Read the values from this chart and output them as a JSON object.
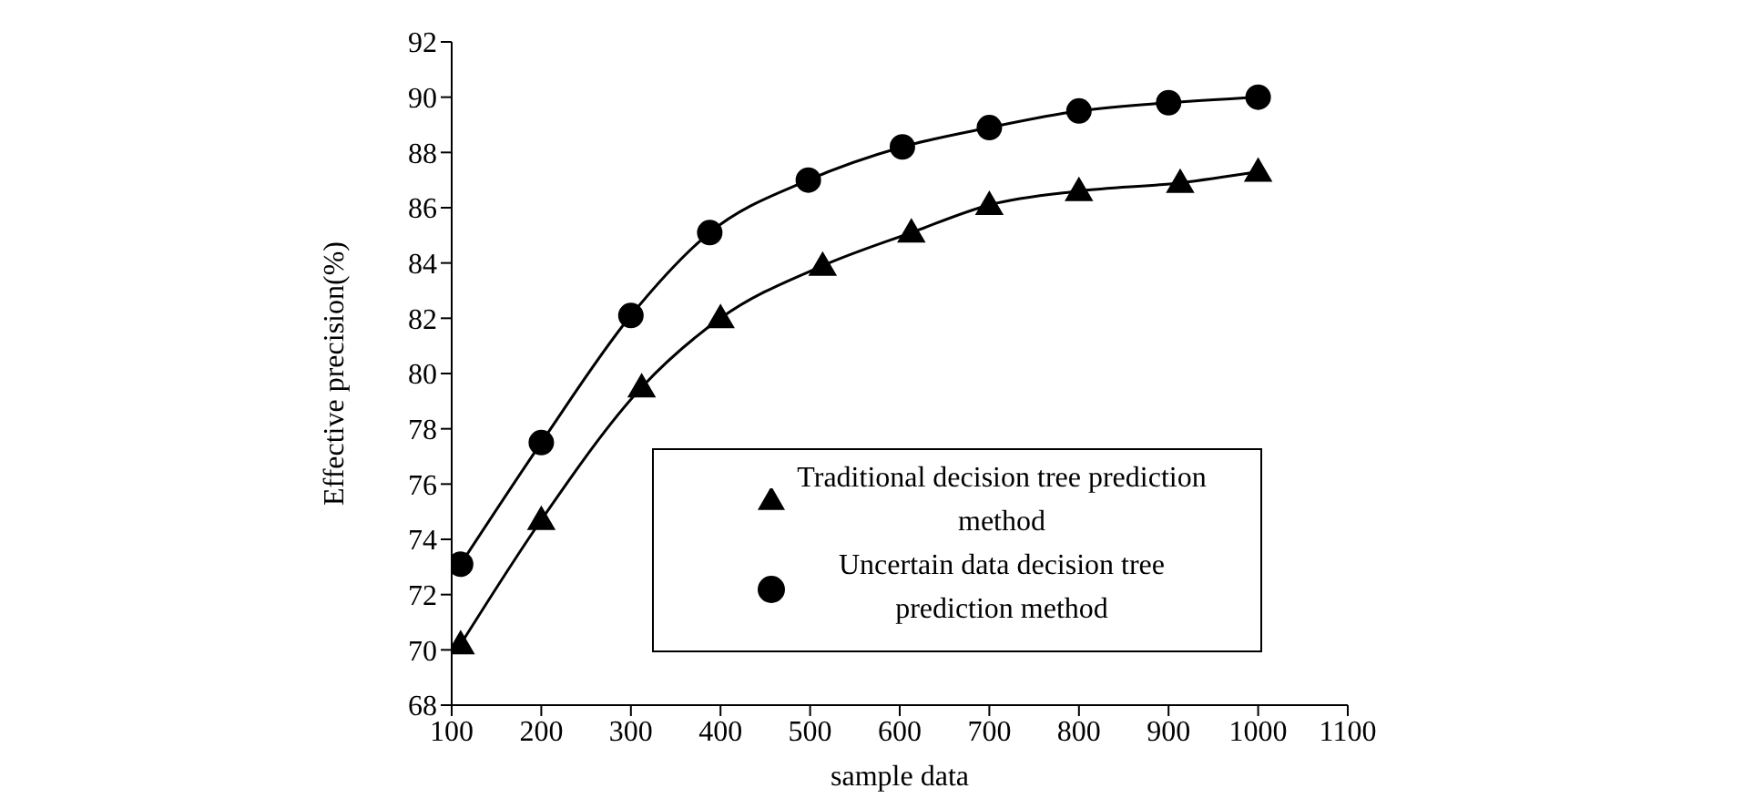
{
  "chart_data": {
    "type": "line",
    "xlabel": "sample data",
    "ylabel": "Effective precision(%)",
    "xlim": [
      100,
      1100
    ],
    "xticks": [
      100,
      200,
      300,
      400,
      500,
      600,
      700,
      800,
      900,
      1000,
      1100
    ],
    "ylim": [
      68,
      92
    ],
    "yticks": [
      68,
      70,
      72,
      74,
      76,
      78,
      80,
      82,
      84,
      86,
      88,
      90,
      92
    ],
    "grid": false,
    "legend": "bottom right",
    "line_style": "solid",
    "series": [
      {
        "name": "Uncertain data decision tree prediction method",
        "color": "#000000",
        "marker": "circle",
        "x": [
          110,
          200,
          300,
          388,
          498,
          603,
          700,
          800,
          900,
          1000
        ],
        "values": [
          73.1,
          77.5,
          82.1,
          85.1,
          87.0,
          88.2,
          88.9,
          89.5,
          89.8,
          90.0
        ]
      },
      {
        "name": "Traditional decision tree prediction method",
        "color": "#000000",
        "marker": "triangle",
        "x": [
          110,
          200,
          312,
          400,
          514,
          613,
          700,
          800,
          913,
          1000
        ],
        "values": [
          70.2,
          74.7,
          79.5,
          82.0,
          83.9,
          85.1,
          86.1,
          86.6,
          86.9,
          87.3
        ]
      }
    ]
  }
}
